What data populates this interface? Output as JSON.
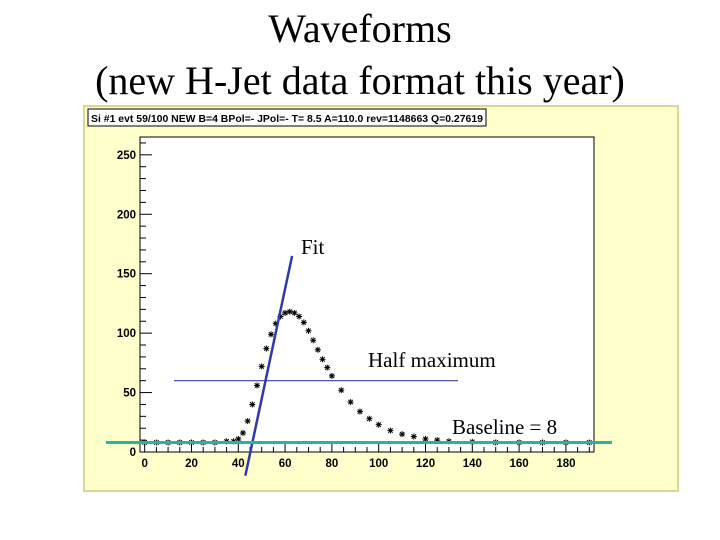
{
  "slide": {
    "title_line1": "Waveforms",
    "title_line2": "(new H-Jet data format this year)"
  },
  "chart_data": {
    "type": "scatter",
    "title": "Si #1 evt 59/100 NEW B=4 BPol=- JPol=- T= 8.5 A=110.0 rev=1148663 Q=0.27619",
    "xlabel": "",
    "ylabel": "",
    "xlim": [
      -2,
      192
    ],
    "ylim": [
      0,
      265
    ],
    "xticks": [
      "0",
      "20",
      "40",
      "60",
      "80",
      "100",
      "120",
      "140",
      "160",
      "180"
    ],
    "yticks": [
      "0",
      "50",
      "100",
      "150",
      "200",
      "250"
    ],
    "grid": false,
    "marker": "star",
    "series": [
      {
        "x": [
          0,
          5,
          10,
          15,
          20,
          25,
          30,
          35,
          38,
          40,
          42,
          44,
          46,
          48,
          50,
          52,
          54,
          56,
          58,
          60,
          62,
          64,
          66,
          68,
          70,
          72,
          74,
          76,
          78,
          80,
          84,
          88,
          92,
          96,
          100,
          105,
          110,
          115,
          120,
          125,
          130,
          140,
          150,
          160,
          170,
          180,
          190
        ],
        "y": [
          8,
          8,
          8,
          8,
          8,
          8,
          8,
          9,
          9,
          11,
          16,
          26,
          40,
          56,
          72,
          87,
          99,
          108,
          114,
          117,
          118,
          117,
          114,
          109,
          102,
          94,
          86,
          78,
          71,
          64,
          52,
          42,
          34,
          28,
          23,
          18,
          15,
          13,
          11,
          10,
          9,
          8.5,
          8,
          8,
          8,
          8,
          8
        ]
      }
    ],
    "annotations": {
      "fit_label": "Fit",
      "half_max_label": "Half maximum",
      "baseline_label": "Baseline = 8",
      "fit_line": {
        "x": [
          43,
          63
        ],
        "y": [
          -20,
          165
        ]
      },
      "half_max_y": 60,
      "baseline_y": 8
    },
    "colors": {
      "frame_bg": "#ffffcc",
      "frame_border": "#d8d890",
      "plot_bg": "#ffffff",
      "data": "#000000",
      "fit_line": "#2f3aa6",
      "half_max_line": "#3d3d9e",
      "baseline_line": "#20b7a0"
    }
  }
}
